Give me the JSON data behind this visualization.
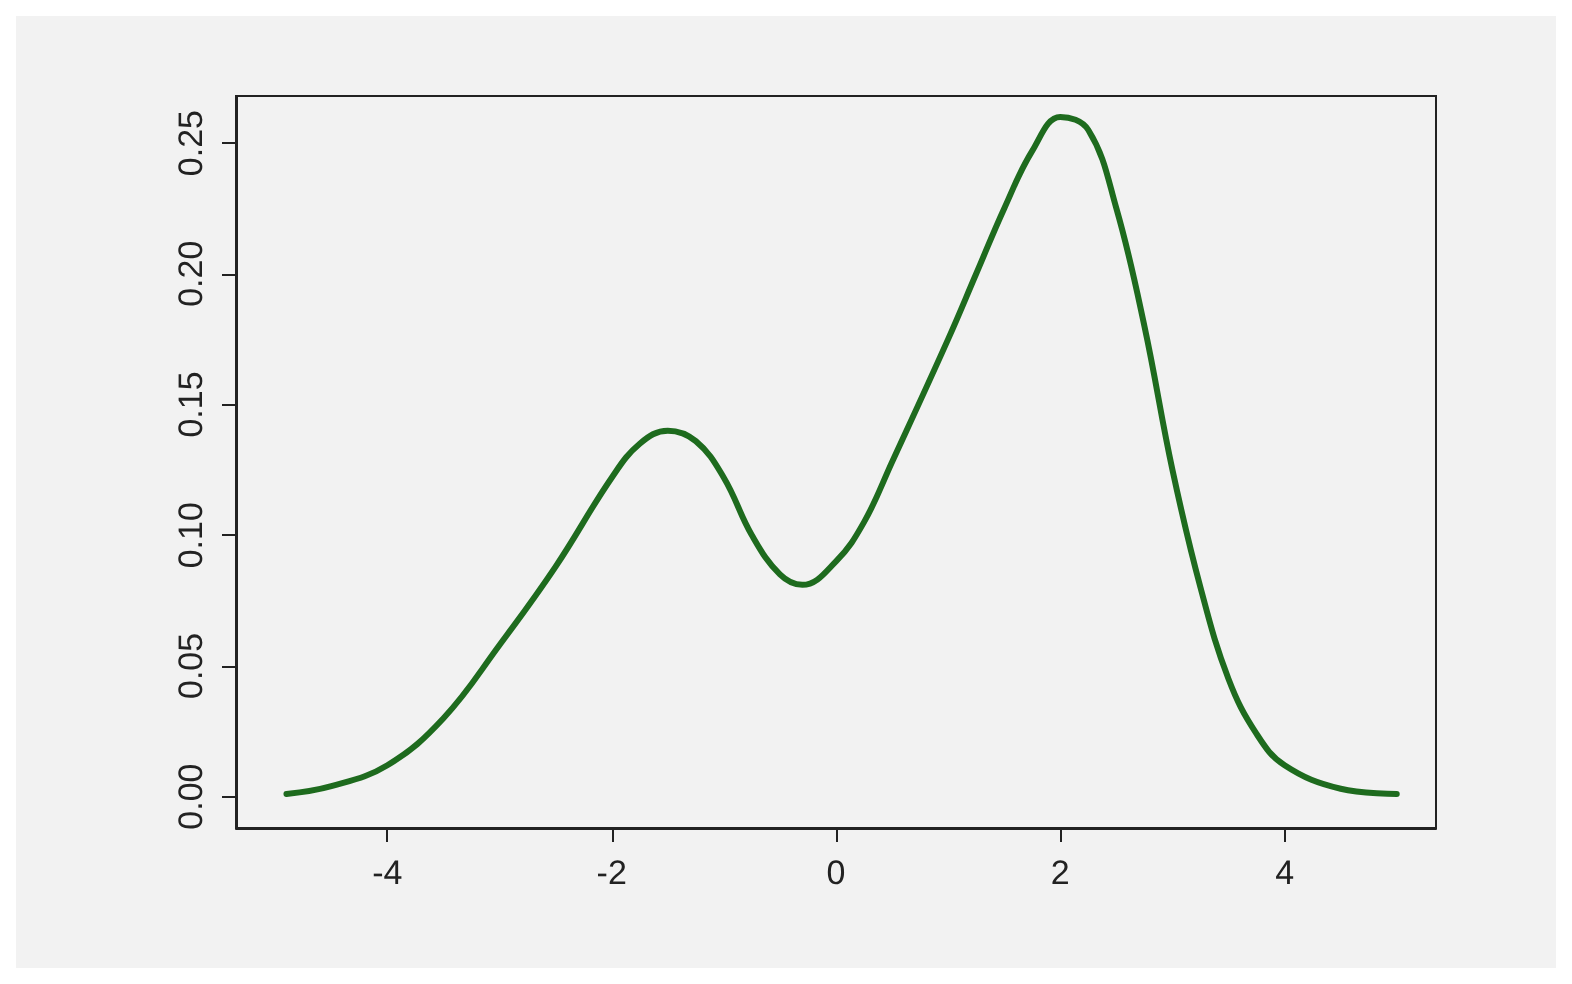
{
  "chart_data": {
    "type": "line",
    "x": [
      -4.9,
      -4.5,
      -4,
      -3.5,
      -3,
      -2.5,
      -2,
      -1.75,
      -1.5,
      -1.25,
      -1,
      -0.75,
      -0.5,
      -0.3,
      0,
      0.25,
      0.5,
      1,
      1.25,
      1.5,
      1.75,
      2,
      2.25,
      2.5,
      2.75,
      3,
      3.25,
      3.5,
      3.75,
      4,
      4.5,
      5
    ],
    "series": [
      {
        "color": "#1e6b1e",
        "values": [
          0.001,
          0.004,
          0.012,
          0.03,
          0.058,
          0.088,
          0.122,
          0.135,
          0.14,
          0.136,
          0.122,
          0.1,
          0.085,
          0.081,
          0.09,
          0.105,
          0.128,
          0.175,
          0.2,
          0.225,
          0.247,
          0.26,
          0.255,
          0.225,
          0.18,
          0.125,
          0.08,
          0.045,
          0.024,
          0.012,
          0.003,
          0.001
        ]
      }
    ],
    "xlim": [
      -5.35,
      5.35
    ],
    "xticks": [
      -4,
      -2,
      0,
      2,
      4
    ],
    "ylim": [
      -0.012,
      0.268
    ],
    "yticks": [
      {
        "value": 0,
        "label": "0.00"
      },
      {
        "value": 0.05,
        "label": "0.05"
      },
      {
        "value": 0.1,
        "label": "0.10"
      },
      {
        "value": 0.15,
        "label": "0.15"
      },
      {
        "value": 0.2,
        "label": "0.20"
      },
      {
        "value": 0.25,
        "label": "0.25"
      }
    ],
    "grid": false,
    "marker": "none",
    "line_style": "solid"
  }
}
